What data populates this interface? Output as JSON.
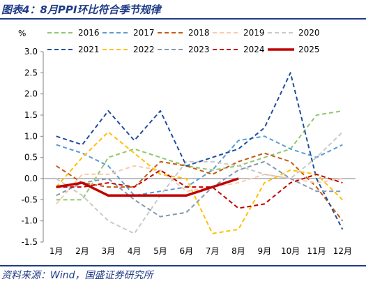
{
  "header": {
    "title": "图表4：8月PPI环比符合季节规律"
  },
  "footer": {
    "source": "资料来源：Wind，国盛证券研究所"
  },
  "chart_data": {
    "type": "line",
    "title": "",
    "xlabel": "",
    "ylabel": "%",
    "ylim": [
      -1.5,
      3.0
    ],
    "yticks": [
      "3.0",
      "2.5",
      "2.0",
      "1.5",
      "1.0",
      "0.5",
      "0.0",
      "-0.5",
      "-1.0",
      "-1.5"
    ],
    "categories": [
      "1月",
      "2月",
      "3月",
      "4月",
      "5月",
      "6月",
      "7月",
      "8月",
      "9月",
      "10月",
      "11月",
      "12月"
    ],
    "grid": false,
    "legend": "top",
    "series": [
      {
        "name": "2016",
        "color": "#92c66f",
        "dash": "dashed",
        "values": [
          -0.5,
          -0.5,
          0.5,
          0.7,
          0.5,
          0.3,
          0.2,
          0.3,
          0.5,
          0.7,
          1.5,
          1.6
        ]
      },
      {
        "name": "2017",
        "color": "#5b9bd5",
        "dash": "dashed",
        "values": [
          0.8,
          0.6,
          0.3,
          -0.4,
          -0.3,
          -0.2,
          0.2,
          0.9,
          1.0,
          0.7,
          0.5,
          0.8
        ]
      },
      {
        "name": "2018",
        "color": "#c55a11",
        "dash": "dashed",
        "values": [
          0.3,
          -0.1,
          -0.2,
          -0.2,
          0.4,
          0.3,
          0.1,
          0.4,
          0.6,
          0.4,
          -0.2,
          -1.0
        ]
      },
      {
        "name": "2019",
        "color": "#f8cbad",
        "dash": "dashed",
        "values": [
          -0.6,
          0.1,
          0.1,
          0.3,
          0.2,
          -0.3,
          -0.2,
          -0.1,
          0.1,
          0.0,
          -0.1,
          0.0
        ]
      },
      {
        "name": "2020",
        "color": "#c9c9c9",
        "dash": "dashed",
        "values": [
          0.0,
          -0.4,
          -1.0,
          -1.3,
          -0.4,
          0.4,
          0.4,
          0.3,
          0.1,
          0.0,
          0.5,
          1.1
        ]
      },
      {
        "name": "2021",
        "color": "#1f4e9c",
        "dash": "dashed",
        "values": [
          1.0,
          0.8,
          1.6,
          0.9,
          1.6,
          0.3,
          0.5,
          0.7,
          1.2,
          2.5,
          0.0,
          -1.2
        ]
      },
      {
        "name": "2022",
        "color": "#ffc000",
        "dash": "dashed",
        "values": [
          -0.2,
          0.5,
          1.1,
          0.6,
          0.1,
          0.0,
          -1.3,
          -1.2,
          -0.1,
          0.2,
          0.1,
          -0.5
        ]
      },
      {
        "name": "2023",
        "color": "#8497b0",
        "dash": "dashed",
        "values": [
          -0.4,
          -0.1,
          0.0,
          -0.5,
          -0.9,
          -0.8,
          -0.2,
          0.2,
          0.4,
          0.0,
          -0.3,
          -0.3
        ]
      },
      {
        "name": "2024",
        "color": "#c00000",
        "dash": "dashed",
        "values": [
          -0.2,
          -0.2,
          -0.1,
          -0.2,
          0.2,
          -0.2,
          -0.2,
          -0.7,
          -0.6,
          -0.1,
          0.1,
          -0.1
        ]
      },
      {
        "name": "2025",
        "color": "#c00000",
        "dash": "solid",
        "values": [
          -0.2,
          -0.1,
          -0.4,
          -0.4,
          -0.4,
          -0.4,
          -0.2,
          0.0,
          null,
          null,
          null,
          null
        ]
      }
    ]
  }
}
